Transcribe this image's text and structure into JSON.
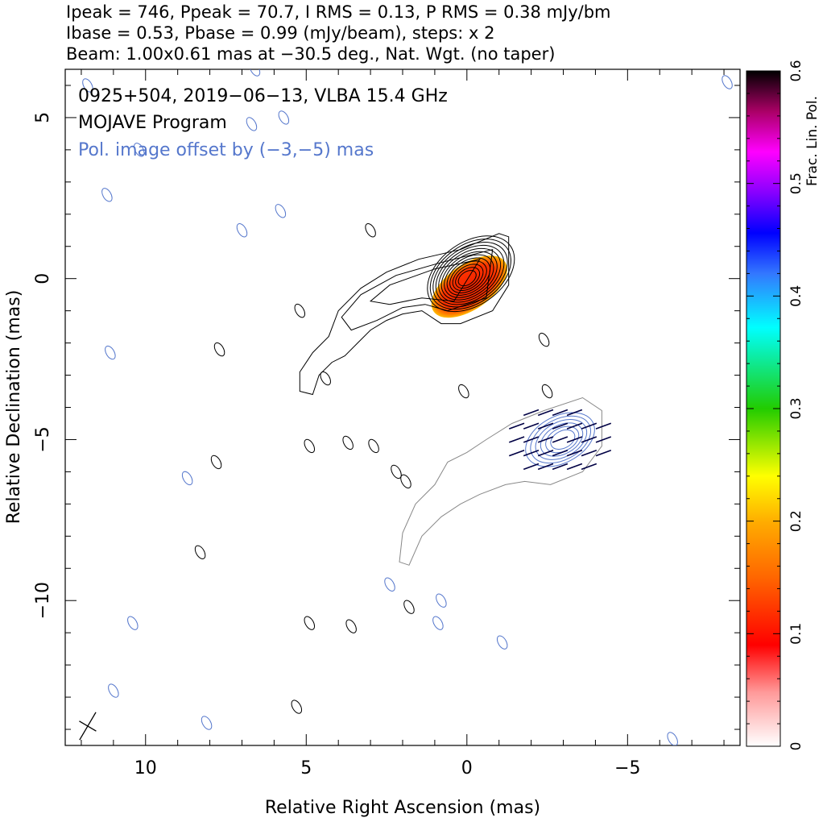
{
  "header": {
    "line1": "Ipeak = 746, Ppeak = 70.7, I RMS = 0.13, P RMS = 0.38 mJy/bm",
    "line2": "Ibase = 0.53, Pbase = 0.99 (mJy/beam), steps: x 2",
    "line3": "Beam: 1.00x0.61 mas at −30.5 deg., Nat. Wgt. (no taper)"
  },
  "annotations": {
    "source": "0925+504, 2019−06−13, VLBA 15.4 GHz",
    "program": "MOJAVE Program",
    "offset": "Pol. image offset by (−3,−5) mas"
  },
  "colors": {
    "total_intensity": "#000000",
    "polarization_contours": "#5577cc",
    "offset_text": "#5577cc",
    "evpa_ticks": "#000044"
  },
  "chart_data": {
    "type": "contour",
    "xlabel": "Relative Right Ascension (mas)",
    "ylabel": "Relative Declination (mas)",
    "xlim": [
      12.5,
      -8.5
    ],
    "ylim": [
      -14.5,
      6.5
    ],
    "x_ticks": [
      10,
      5,
      0,
      -5
    ],
    "x_tick_labels": [
      "10",
      "5",
      "0",
      "−5"
    ],
    "y_ticks": [
      5,
      0,
      -5,
      -10
    ],
    "y_tick_labels": [
      "5",
      "0",
      "−5",
      "−10"
    ],
    "colorbar": {
      "label": "Frac. Lin. Pol.",
      "range": [
        0,
        0.6
      ],
      "ticks": [
        0,
        0.1,
        0.2,
        0.3,
        0.4,
        0.5,
        0.6
      ],
      "tick_labels": [
        "0",
        "0.1",
        "0.2",
        "0.3",
        "0.4",
        "0.5",
        "0.6"
      ]
    },
    "stokes_i": {
      "core": [
        0,
        0
      ],
      "peak": 746,
      "rms": 0.13,
      "base": 0.53,
      "contour_step": 2,
      "contour_levels": 12,
      "jet_direction": "southeast to northwest, extending to about (5.2, -3.5) mas"
    },
    "polarization": {
      "offset": [
        -3,
        -5
      ],
      "peak": 70.7,
      "rms": 0.38,
      "base": 0.99,
      "contour_levels": 6,
      "evpa_ticks": 30,
      "fractional_pol_core": 0.1
    },
    "beam": {
      "major": 1.0,
      "minor": 0.61,
      "pa_deg": -30.5,
      "weighting": "Nat. Wgt. (no taper)"
    }
  }
}
